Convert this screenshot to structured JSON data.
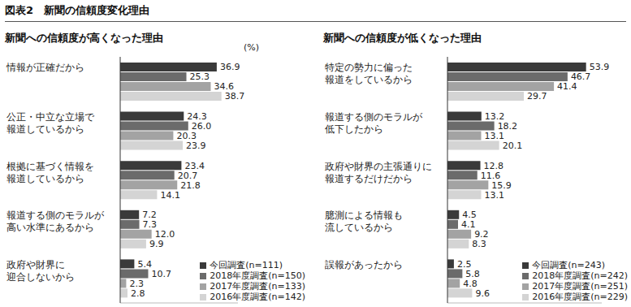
{
  "title": "図表2　新聞の信頼度変化理由",
  "chart_data": [
    {
      "type": "bar",
      "title": "新聞への信頼度が高くなった理由",
      "annotation": "(%)",
      "orientation": "horizontal",
      "categories": [
        "情報が正確だから",
        "公正・中立な立場で\n報道しているから",
        "根拠に基づく情報を\n報道しているから",
        "報道する側のモラルが\n高い水準にあるから",
        "政府や財界に\n迎合しないから"
      ],
      "series": [
        {
          "name": "今回調査(n=111)",
          "color": "#3a3a3a",
          "values": [
            36.9,
            24.3,
            23.4,
            7.2,
            5.4
          ],
          "value_labels": [
            "36.9",
            "24.3",
            "23.4",
            "7.2",
            "5.4"
          ]
        },
        {
          "name": "2018年度調査(n=150)",
          "color": "#6b6b6b",
          "values": [
            25.3,
            26.0,
            20.7,
            7.3,
            10.7
          ],
          "value_labels": [
            "25.3",
            "26.0",
            "20.7",
            "7.3",
            "10.7"
          ]
        },
        {
          "name": "2017年度調査(n=133)",
          "color": "#a3a3a3",
          "values": [
            34.6,
            20.3,
            21.8,
            12.0,
            2.3
          ],
          "value_labels": [
            "34.6",
            "20.3",
            "21.8",
            "12.0",
            "2.3"
          ]
        },
        {
          "name": "2016年度調査(n=142)",
          "color": "#d4d4d4",
          "values": [
            38.7,
            23.9,
            14.1,
            9.9,
            2.8
          ],
          "value_labels": [
            "38.7",
            "23.9",
            "14.1",
            "9.9",
            "2.8"
          ]
        }
      ],
      "xlim": [
        0,
        45
      ],
      "tick_labels": false,
      "data_labels": true,
      "legend": "lower right",
      "grid": false
    },
    {
      "type": "bar",
      "title": "新聞への信頼度が低くなった理由",
      "orientation": "horizontal",
      "categories": [
        "特定の勢力に偏った\n報道をしているから",
        "報道する側のモラルが\n低下したから",
        "政府や財界の主張通りに\n報道するだけだから",
        "臆測による情報も\n流しているから",
        "誤報があったから"
      ],
      "series": [
        {
          "name": "今回調査(n=243)",
          "color": "#3a3a3a",
          "values": [
            53.9,
            13.2,
            12.8,
            4.5,
            2.5
          ],
          "value_labels": [
            "53.9",
            "13.2",
            "12.8",
            "4.5",
            "2.5"
          ]
        },
        {
          "name": "2018年度調査(n=242)",
          "color": "#6b6b6b",
          "values": [
            46.7,
            18.2,
            11.6,
            4.1,
            5.8
          ],
          "value_labels": [
            "46.7",
            "18.2",
            "11.6",
            "4.1",
            "5.8"
          ]
        },
        {
          "name": "2017年度調査(n=251)",
          "color": "#a3a3a3",
          "values": [
            41.4,
            13.1,
            15.9,
            9.2,
            4.8
          ],
          "value_labels": [
            "41.4",
            "13.1",
            "15.9",
            "9.2",
            "4.8"
          ]
        },
        {
          "name": "2016年度調査(n=229)",
          "color": "#d4d4d4",
          "values": [
            29.7,
            20.1,
            13.1,
            8.3,
            9.6
          ],
          "value_labels": [
            "29.7",
            "20.1",
            "13.1",
            "8.3",
            "9.6"
          ]
        }
      ],
      "xlim": [
        0,
        60
      ],
      "tick_labels": false,
      "data_labels": true,
      "legend": "lower right",
      "grid": false
    }
  ]
}
